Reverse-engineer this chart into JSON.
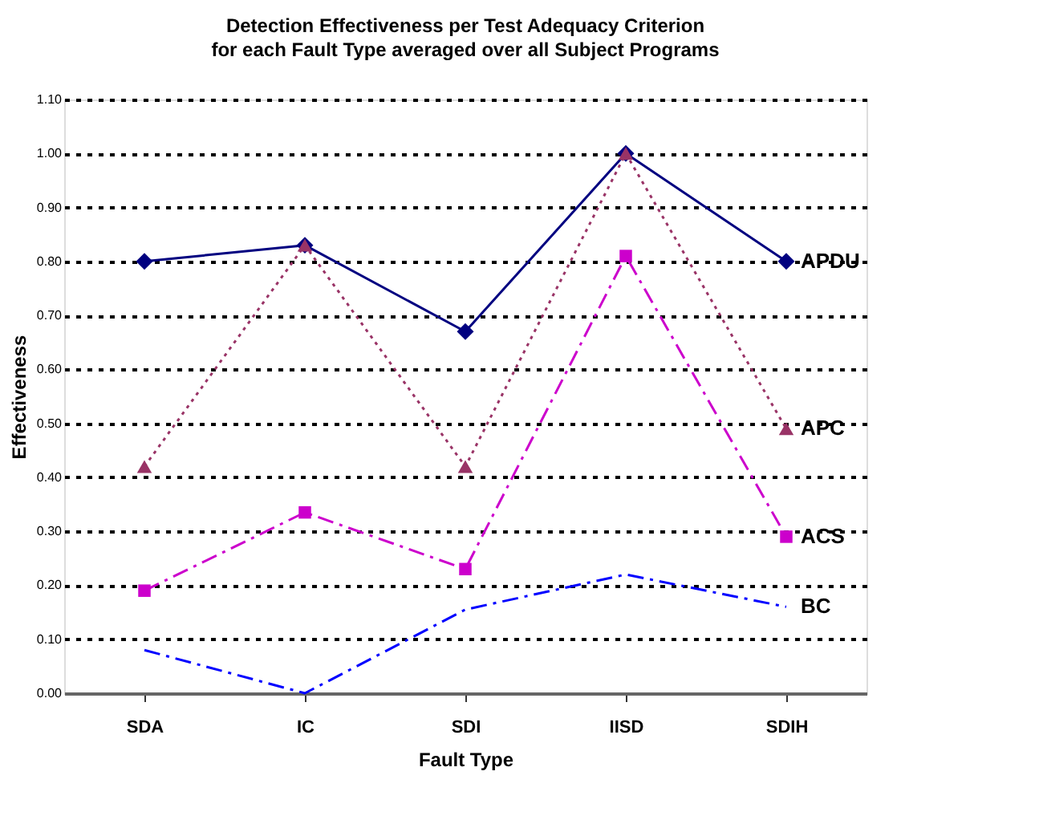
{
  "chart_data": {
    "type": "line",
    "title": "Detection Effectiveness per Test Adequacy Criterion",
    "subtitle": "for each Fault Type averaged over all Subject Programs",
    "xlabel": "Fault Type",
    "ylabel": "Effectiveness",
    "categories": [
      "SDA",
      "IC",
      "SDI",
      "IISD",
      "SDIH"
    ],
    "series": [
      {
        "name": "APDU",
        "color": "#000080",
        "marker": "diamond",
        "line_style": "solid",
        "values": [
          0.8,
          0.83,
          0.67,
          1.0,
          0.8
        ]
      },
      {
        "name": "APC",
        "color": "#993366",
        "marker": "triangle",
        "line_style": "dotted",
        "values": [
          0.42,
          0.83,
          0.42,
          1.0,
          0.49
        ]
      },
      {
        "name": "ACS",
        "color": "#cc00cc",
        "marker": "square",
        "line_style": "dashdot",
        "values": [
          0.19,
          0.335,
          0.23,
          0.81,
          0.29
        ]
      },
      {
        "name": "BC",
        "color": "#0000ff",
        "marker": "none",
        "line_style": "dashdot",
        "values": [
          0.08,
          0.0,
          0.155,
          0.22,
          0.16
        ]
      }
    ],
    "ylim": [
      0,
      1.1
    ],
    "yticks": [
      {
        "value": 0,
        "label": "0.00"
      },
      {
        "value": 0.1,
        "label": "0.10"
      },
      {
        "value": 0.2,
        "label": "0.20"
      },
      {
        "value": 0.3,
        "label": "0.30"
      },
      {
        "value": 0.4,
        "label": "0.40"
      },
      {
        "value": 0.5,
        "label": "0.50"
      },
      {
        "value": 0.6,
        "label": "0.60"
      },
      {
        "value": 0.7,
        "label": "0.70"
      },
      {
        "value": 0.8,
        "label": "0.80"
      },
      {
        "value": 0.9,
        "label": "0.90"
      },
      {
        "value": 1.0,
        "label": "1.00"
      },
      {
        "value": 1.1,
        "label": "1.10"
      }
    ],
    "grid": "y"
  }
}
